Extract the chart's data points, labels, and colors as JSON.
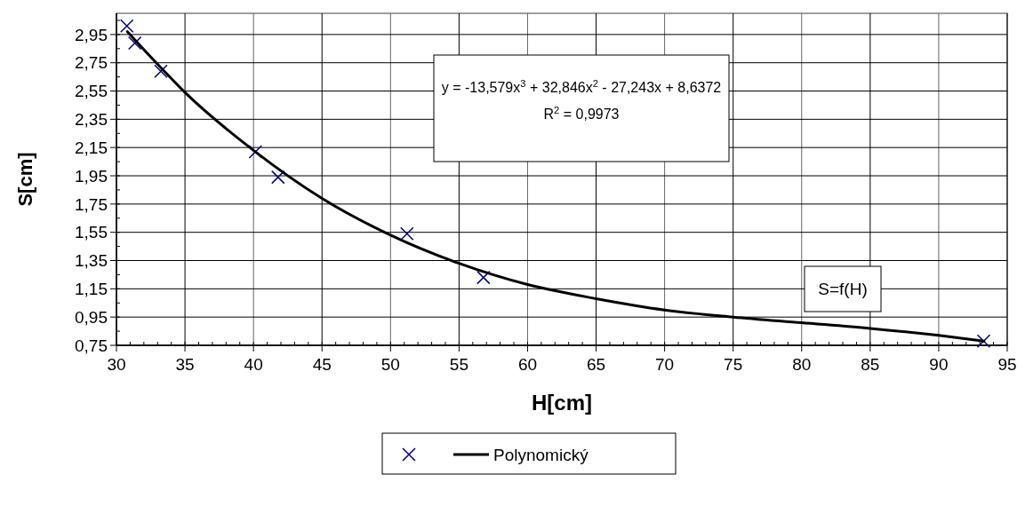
{
  "chart_data": {
    "type": "scatter",
    "xlabel": "H[cm]",
    "ylabel": "S[cm]",
    "xlim": [
      30,
      95
    ],
    "xticks": [
      30,
      35,
      40,
      45,
      50,
      55,
      60,
      65,
      70,
      75,
      80,
      85,
      90,
      95
    ],
    "ylim": [
      0.75,
      3.1
    ],
    "yticks": [
      {
        "value": 0.75,
        "label": "0,75"
      },
      {
        "value": 0.95,
        "label": "0,95"
      },
      {
        "value": 1.15,
        "label": "1,15"
      },
      {
        "value": 1.35,
        "label": "1,35"
      },
      {
        "value": 1.55,
        "label": "1,55"
      },
      {
        "value": 1.75,
        "label": "1,75"
      },
      {
        "value": 1.95,
        "label": "1,95"
      },
      {
        "value": 2.15,
        "label": "2,15"
      },
      {
        "value": 2.35,
        "label": "2,35"
      },
      {
        "value": 2.55,
        "label": "2,55"
      },
      {
        "value": 2.75,
        "label": "2,75"
      },
      {
        "value": 2.95,
        "label": "2,95"
      }
    ],
    "grid": true,
    "legend": "bottom",
    "annotations": [
      "y = -13,579x$^{3}$ + 32,846x$^{2}$ - 27,243x + 8,6372",
      "R$^{2}$ = 0,9973",
      "S=f(H)"
    ],
    "series": [
      {
        "color": "#000080",
        "marker": "cross",
        "x": [
          30.76,
          31.34,
          33.24,
          40.14,
          41.79,
          51.2,
          56.78,
          93.28
        ],
        "values": [
          3.01,
          2.89,
          2.69,
          2.12,
          1.94,
          1.54,
          1.23,
          0.78
        ]
      },
      {
        "type": "line",
        "name": "Polynomický",
        "color": "#000000",
        "marker": "none",
        "line_style": "solid",
        "x": [
          30.8,
          33,
          35,
          40,
          45,
          50,
          55,
          60,
          65,
          70,
          75,
          80,
          85,
          90,
          93.3
        ],
        "values": [
          2.97,
          2.74,
          2.54,
          2.13,
          1.79,
          1.53,
          1.33,
          1.18,
          1.08,
          1.0,
          0.95,
          0.91,
          0.87,
          0.82,
          0.78
        ]
      }
    ]
  }
}
